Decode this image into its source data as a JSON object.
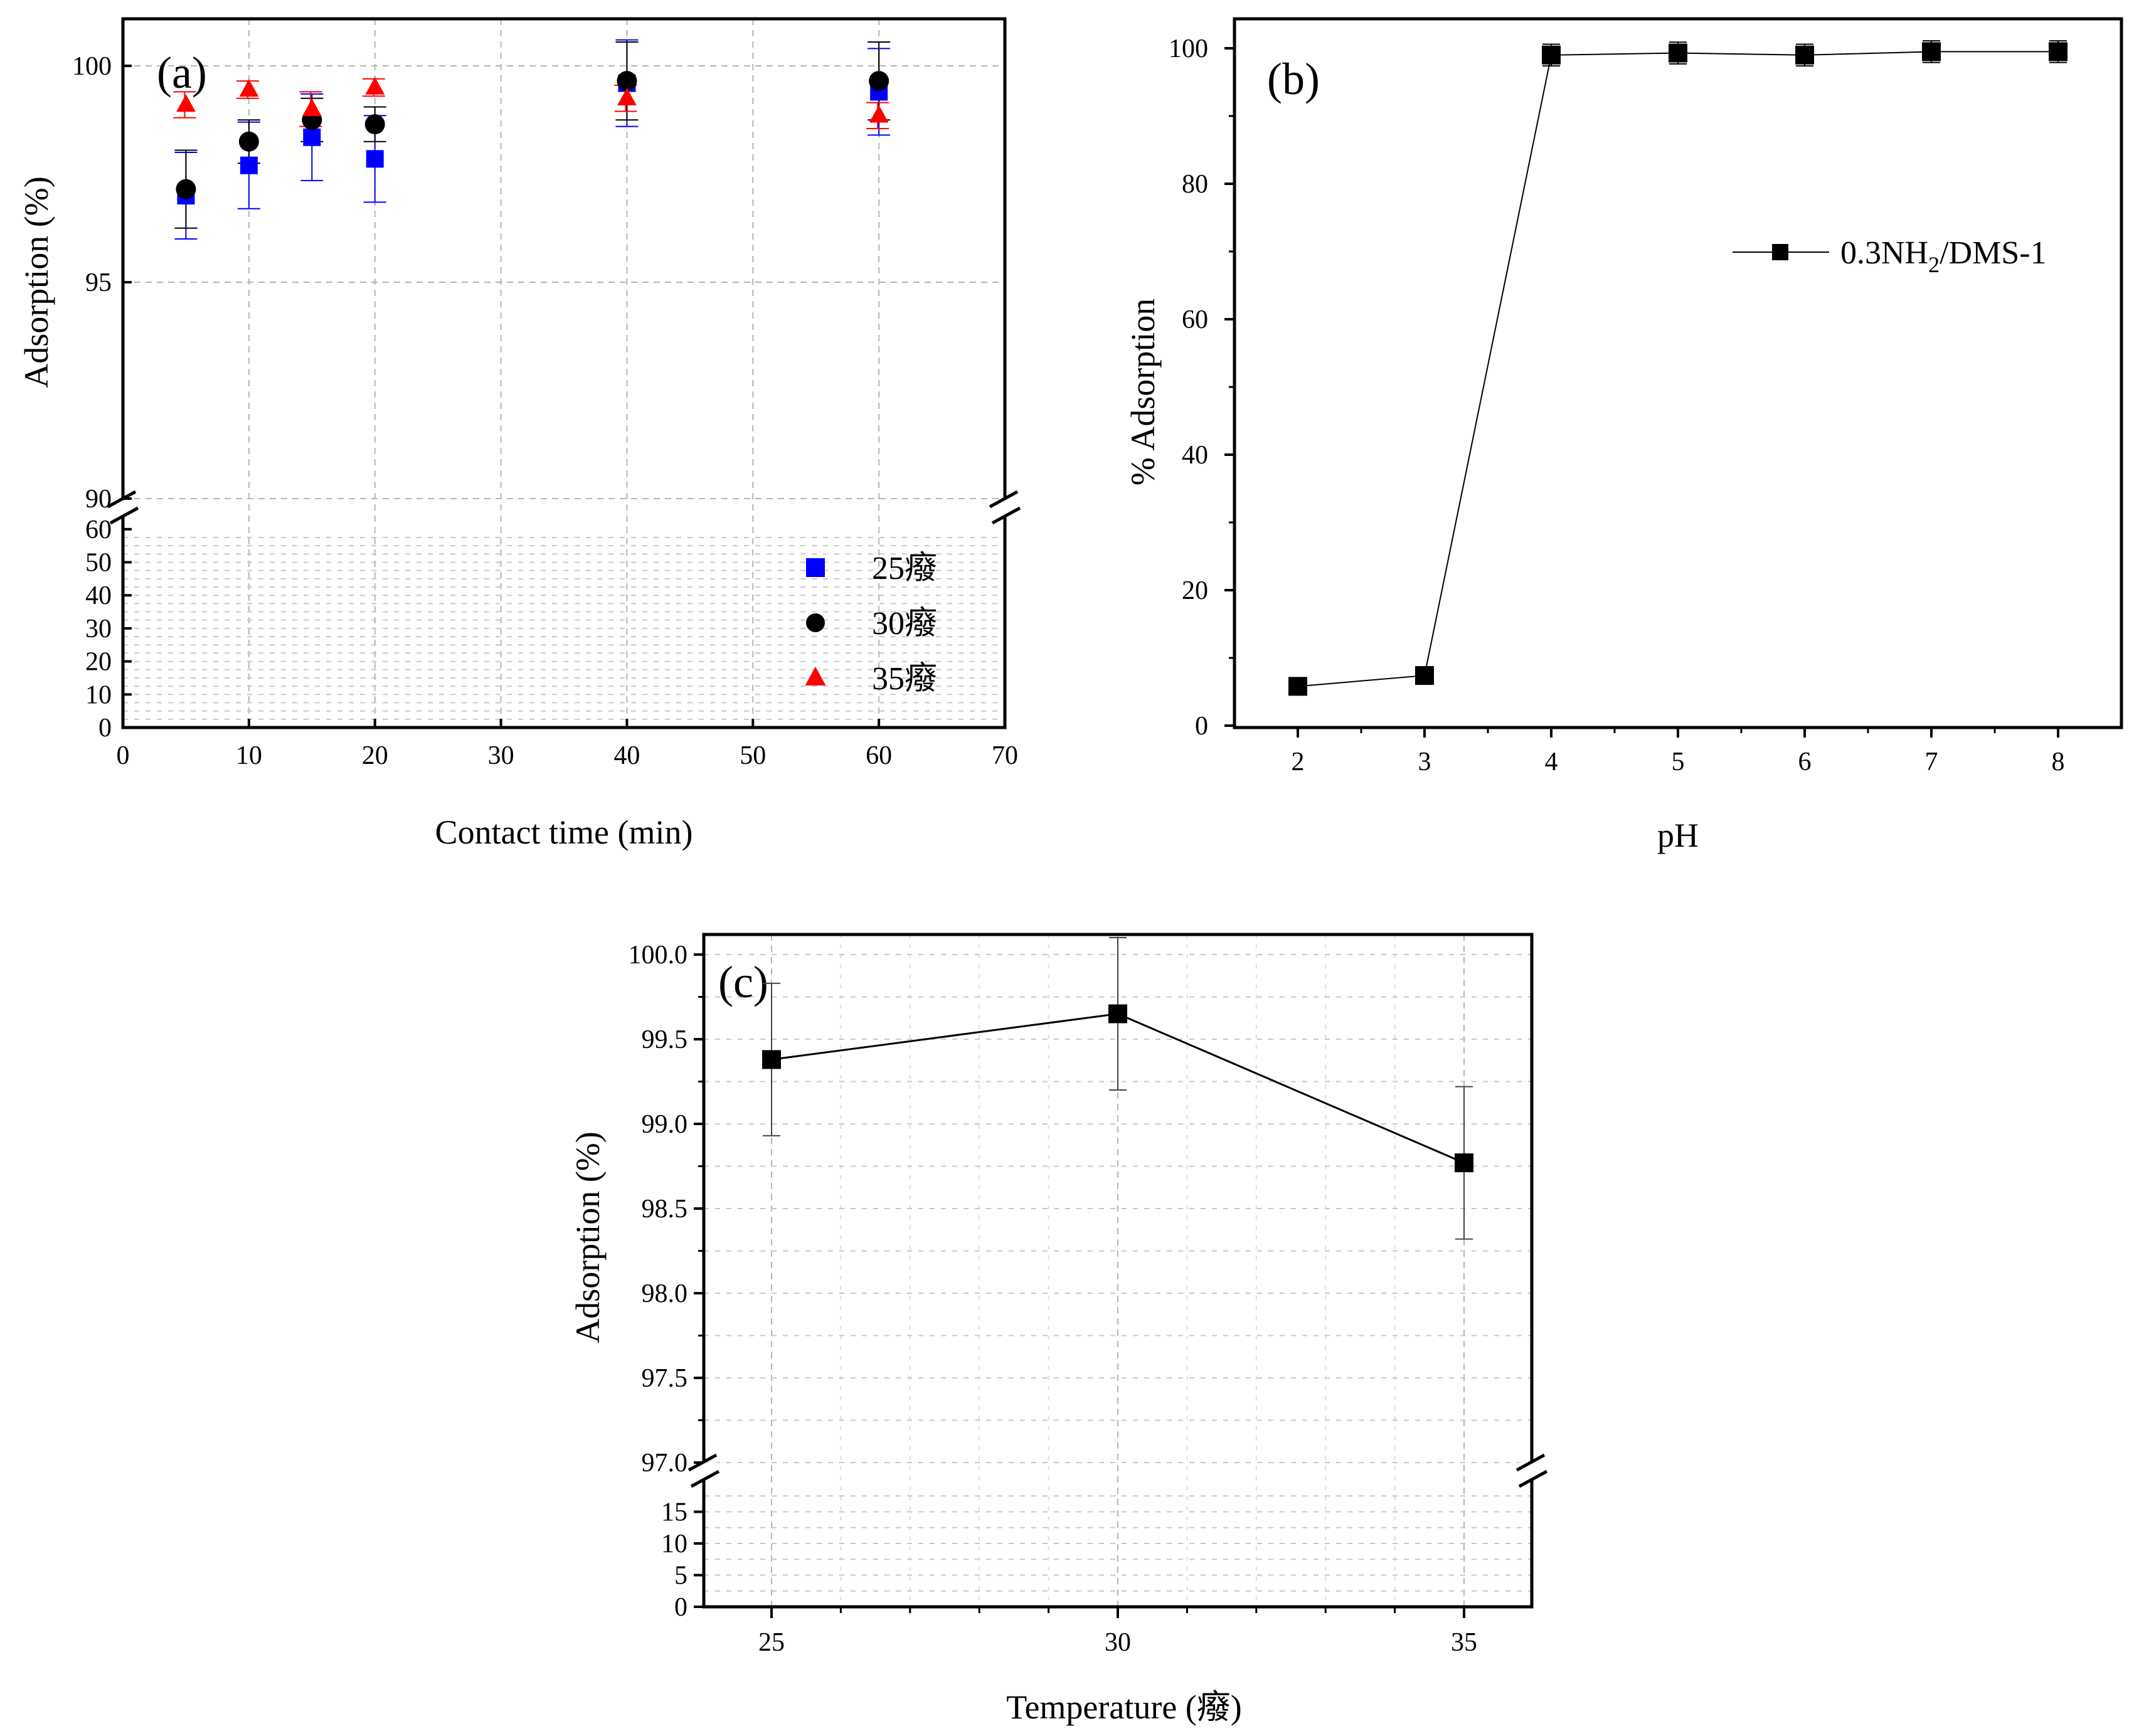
{
  "chart_data": [
    {
      "panel": "(a)",
      "type": "scatter",
      "xlabel": "Contact time (min)",
      "ylabel": "Adsorption (%)",
      "xlim": [
        0,
        70
      ],
      "xticks": [
        "0",
        "10",
        "20",
        "30",
        "40",
        "50",
        "60",
        "70"
      ],
      "y_upper_ticks": [
        "90",
        "95",
        "100"
      ],
      "y_lower_ticks": [
        "0",
        "10",
        "20",
        "30",
        "40",
        "50",
        "60"
      ],
      "axis_break": true,
      "grid": true,
      "legend_position": "bottom-right",
      "series": [
        {
          "name": "25癈",
          "marker": "square",
          "color": "#0000ff",
          "x": [
            5,
            10,
            15,
            20,
            40,
            60
          ],
          "y": [
            97.0,
            97.7,
            98.35,
            97.85,
            99.6,
            99.4
          ],
          "err": [
            1.0,
            1.0,
            1.0,
            1.0,
            1.0,
            1.0
          ]
        },
        {
          "name": "30癈",
          "marker": "circle",
          "color": "#000000",
          "x": [
            5,
            10,
            15,
            20,
            40,
            60
          ],
          "y": [
            97.15,
            98.25,
            98.75,
            98.65,
            99.65,
            99.65
          ],
          "err": [
            0.9,
            0.5,
            0.5,
            0.4,
            0.9,
            0.9
          ]
        },
        {
          "name": "35癈",
          "marker": "triangle",
          "color": "#ff0000",
          "x": [
            5,
            10,
            15,
            20,
            40,
            60
          ],
          "y": [
            99.1,
            99.45,
            99.0,
            99.5,
            99.25,
            98.85
          ],
          "err": [
            0.3,
            0.2,
            0.4,
            0.2,
            0.3,
            0.3
          ]
        }
      ]
    },
    {
      "panel": "(b)",
      "type": "line",
      "xlabel": "pH",
      "ylabel": "% Adsorption",
      "xlim": [
        1.5,
        8.5
      ],
      "ylim": [
        0,
        105
      ],
      "xticks": [
        "2",
        "3",
        "4",
        "5",
        "6",
        "7",
        "8"
      ],
      "yticks": [
        "0",
        "20",
        "40",
        "60",
        "80",
        "100"
      ],
      "grid": false,
      "legend_position": "top-right",
      "series": [
        {
          "name_main": "0.3NH",
          "name_sub": "2",
          "name_tail": "/DMS-1",
          "marker": "square",
          "color": "#000000",
          "x": [
            2,
            3,
            4,
            5,
            6,
            7,
            8
          ],
          "y": [
            5.8,
            7.4,
            99.0,
            99.3,
            99.0,
            99.5,
            99.5
          ],
          "err": [
            0.6,
            0.6,
            1.6,
            1.6,
            1.6,
            1.6,
            1.6
          ]
        }
      ]
    },
    {
      "panel": "(c)",
      "type": "line",
      "xlabel": "Temperature (癈)",
      "ylabel": "Adsorption (%)",
      "xticks": [
        "25",
        "30",
        "35"
      ],
      "y_upper_ticks": [
        "97.0",
        "97.5",
        "98.0",
        "98.5",
        "99.0",
        "99.5",
        "100.0"
      ],
      "y_lower_ticks": [
        "0",
        "5",
        "10",
        "15"
      ],
      "axis_break": true,
      "grid": true,
      "series": [
        {
          "marker": "square",
          "color": "#000000",
          "x": [
            25,
            30,
            35
          ],
          "y": [
            99.38,
            99.65,
            98.77
          ],
          "err": [
            0.45,
            0.45,
            0.45
          ]
        }
      ]
    }
  ]
}
